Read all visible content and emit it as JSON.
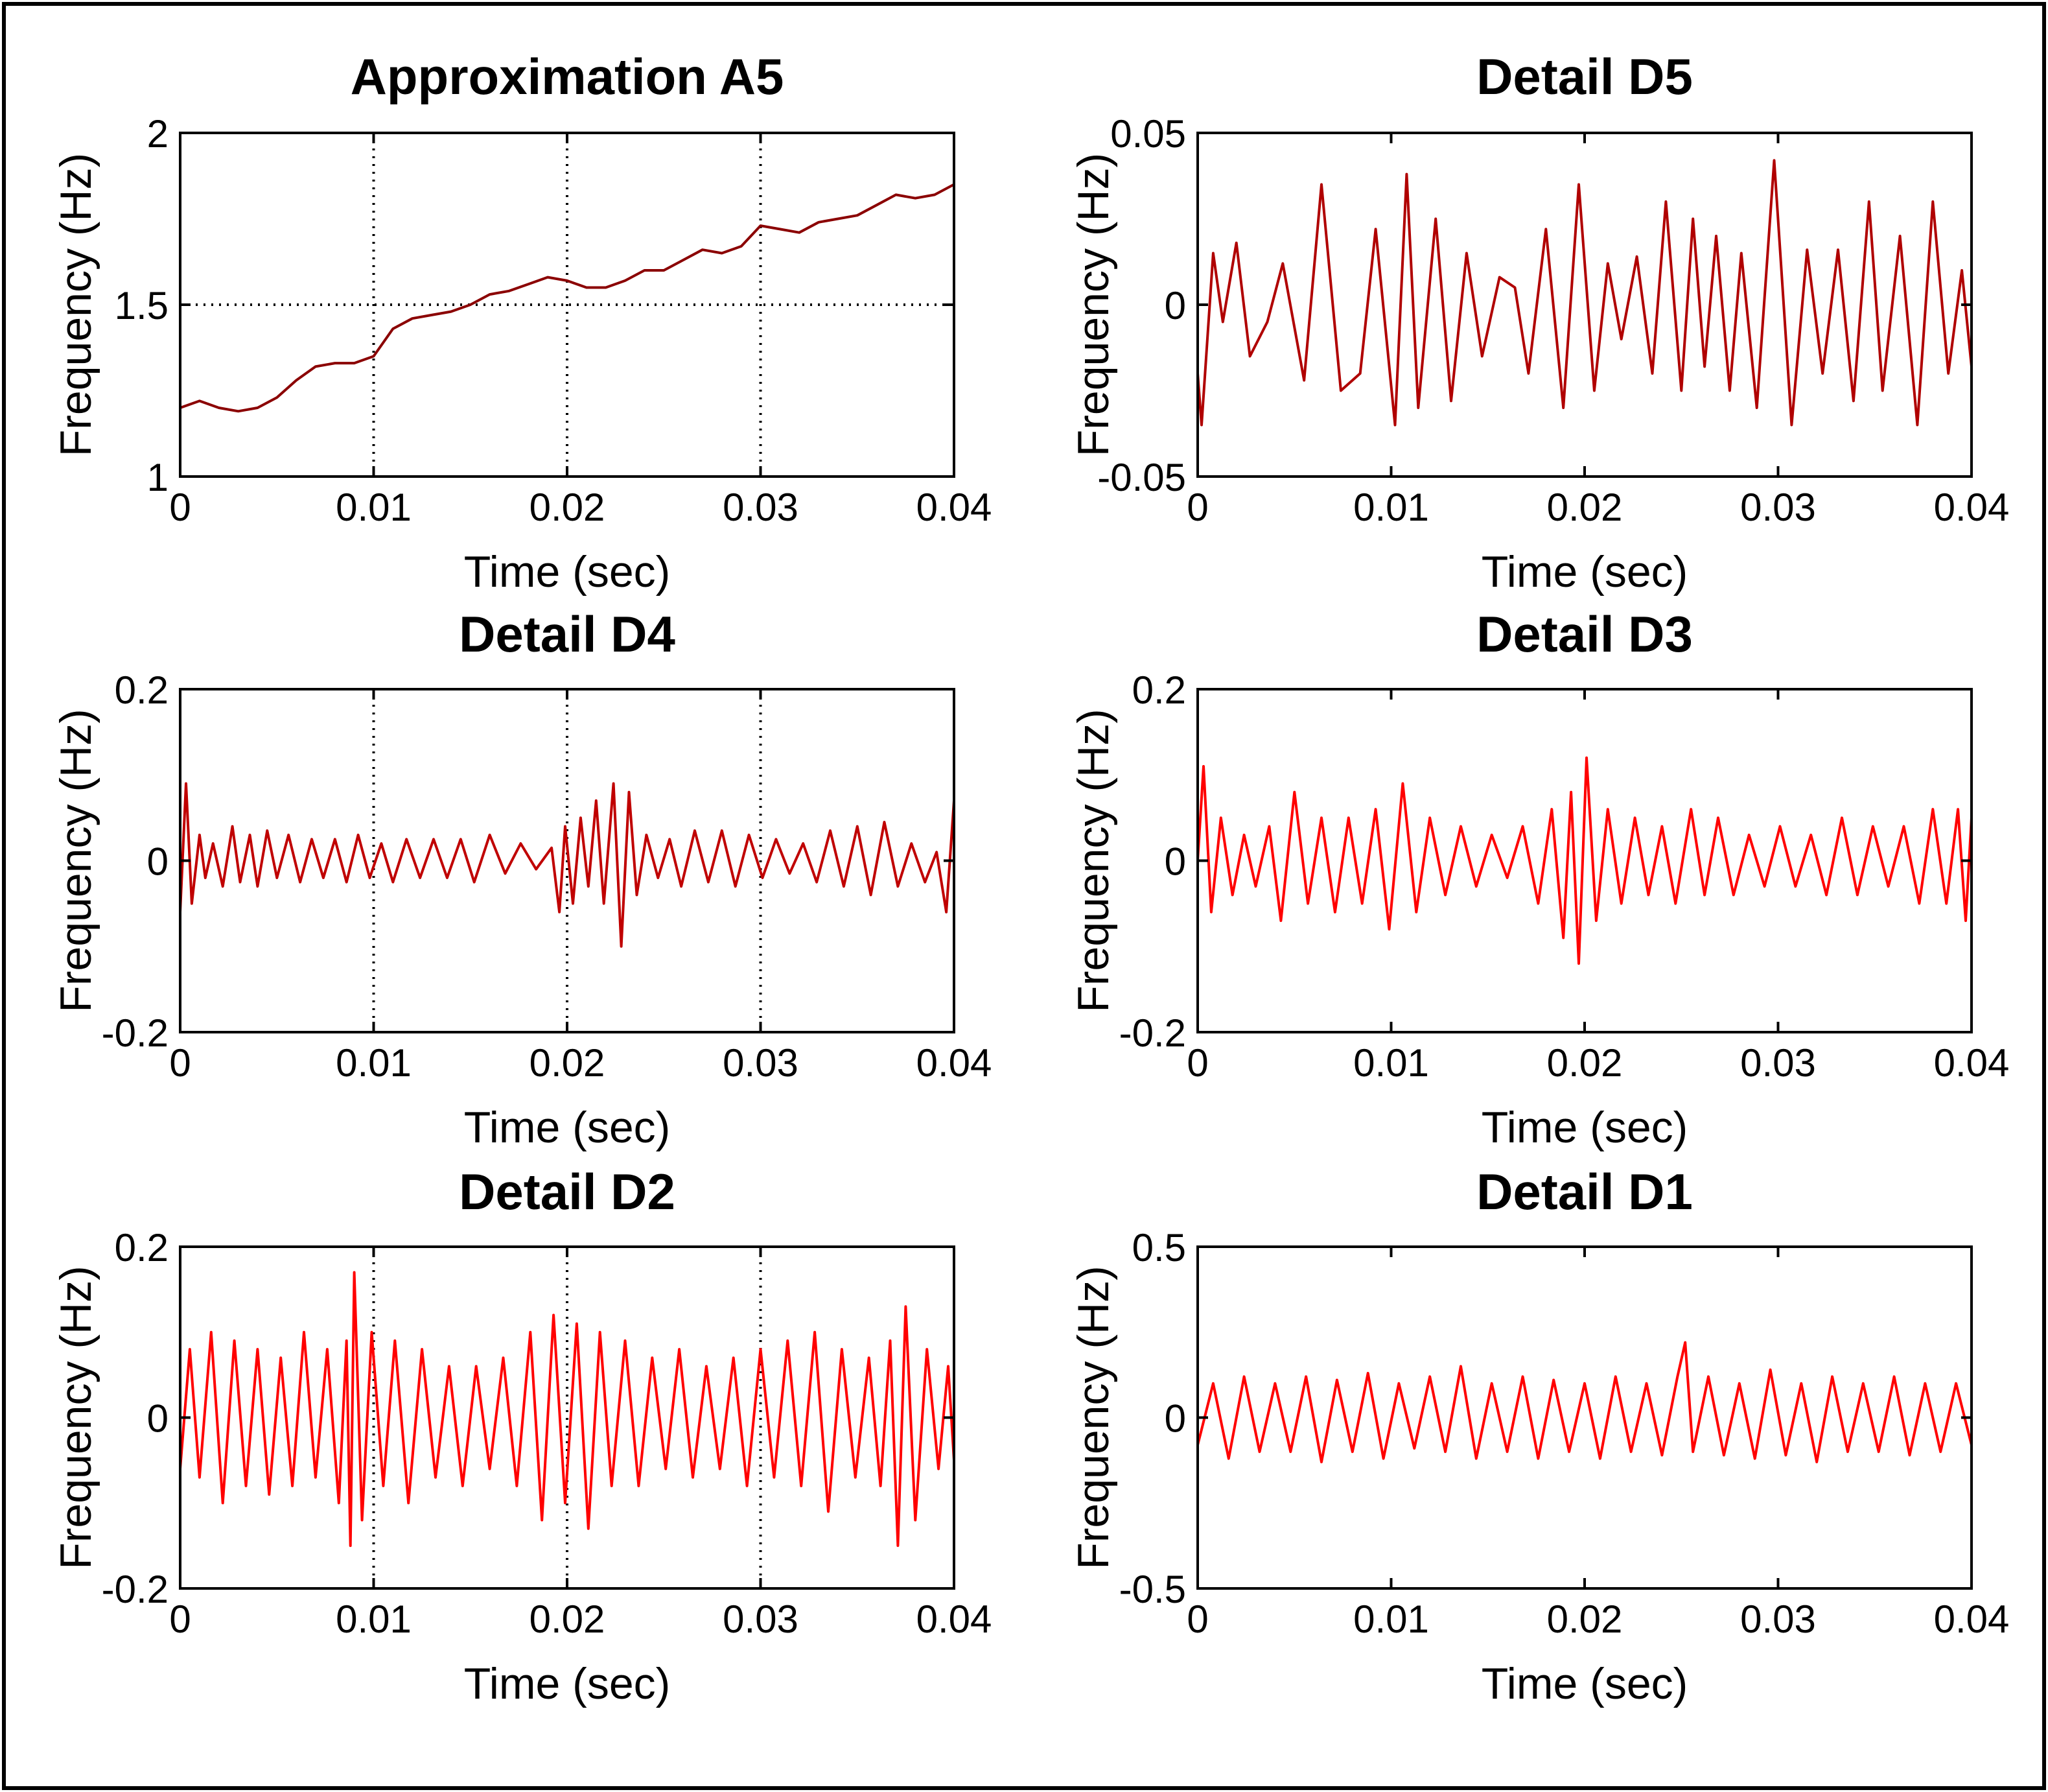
{
  "chart_data": [
    {
      "type": "line",
      "title": "Approximation A5",
      "xlabel": "Time (sec)",
      "ylabel": "Frequency (Hz)",
      "xlim": [
        0,
        0.04
      ],
      "ylim": [
        1,
        2
      ],
      "x_ticks": [
        "0",
        "0.01",
        "0.02",
        "0.03",
        "0.04"
      ],
      "y_ticks": [
        "1",
        "1.5",
        "2"
      ],
      "grid": "x-major dotted, y=1.5 dotted",
      "line_color": "#8b0000",
      "x": [
        0,
        0.001,
        0.002,
        0.003,
        0.004,
        0.005,
        0.006,
        0.007,
        0.008,
        0.009,
        0.01,
        0.011,
        0.012,
        0.013,
        0.014,
        0.015,
        0.016,
        0.017,
        0.018,
        0.019,
        0.02,
        0.021,
        0.022,
        0.023,
        0.024,
        0.025,
        0.026,
        0.027,
        0.028,
        0.029,
        0.03,
        0.031,
        0.032,
        0.033,
        0.034,
        0.035,
        0.036,
        0.037,
        0.038,
        0.039,
        0.04
      ],
      "y": [
        1.2,
        1.22,
        1.2,
        1.19,
        1.2,
        1.23,
        1.28,
        1.32,
        1.33,
        1.33,
        1.35,
        1.43,
        1.46,
        1.47,
        1.48,
        1.5,
        1.53,
        1.54,
        1.56,
        1.58,
        1.57,
        1.55,
        1.55,
        1.57,
        1.6,
        1.6,
        1.63,
        1.66,
        1.65,
        1.67,
        1.73,
        1.72,
        1.71,
        1.74,
        1.75,
        1.76,
        1.79,
        1.82,
        1.81,
        1.82,
        1.85
      ]
    },
    {
      "type": "line",
      "title": "Detail D5",
      "xlabel": "Time (sec)",
      "ylabel": "Frequency (Hz)",
      "xlim": [
        0,
        0.04
      ],
      "ylim": [
        -0.05,
        0.05
      ],
      "x_ticks": [
        "0",
        "0.01",
        "0.02",
        "0.03",
        "0.04"
      ],
      "y_ticks": [
        "-0.05",
        "0",
        "0.05"
      ],
      "line_color": "#b00000",
      "x": [
        0,
        0.0002,
        0.0008,
        0.0013,
        0.002,
        0.0027,
        0.0036,
        0.0044,
        0.0055,
        0.0064,
        0.0074,
        0.0084,
        0.0092,
        0.0102,
        0.0108,
        0.0114,
        0.0123,
        0.0131,
        0.0139,
        0.0147,
        0.0156,
        0.0164,
        0.0171,
        0.018,
        0.0189,
        0.0197,
        0.0205,
        0.0212,
        0.0219,
        0.0227,
        0.0235,
        0.0242,
        0.025,
        0.0256,
        0.0262,
        0.0268,
        0.0275,
        0.0281,
        0.0289,
        0.0298,
        0.0307,
        0.0315,
        0.0323,
        0.0331,
        0.0339,
        0.0347,
        0.0354,
        0.0363,
        0.0372,
        0.038,
        0.0388,
        0.0395,
        0.04
      ],
      "y": [
        -0.02,
        -0.035,
        0.015,
        -0.005,
        0.018,
        -0.015,
        -0.005,
        0.012,
        -0.022,
        0.035,
        -0.025,
        -0.02,
        0.022,
        -0.035,
        0.038,
        -0.03,
        0.025,
        -0.028,
        0.015,
        -0.015,
        0.008,
        0.005,
        -0.02,
        0.022,
        -0.03,
        0.035,
        -0.025,
        0.012,
        -0.01,
        0.014,
        -0.02,
        0.03,
        -0.025,
        0.025,
        -0.018,
        0.02,
        -0.025,
        0.015,
        -0.03,
        0.042,
        -0.035,
        0.016,
        -0.02,
        0.016,
        -0.028,
        0.03,
        -0.025,
        0.02,
        -0.035,
        0.03,
        -0.02,
        0.01,
        -0.018
      ]
    },
    {
      "type": "line",
      "title": "Detail D4",
      "xlabel": "Time (sec)",
      "ylabel": "Frequency (Hz)",
      "xlim": [
        0,
        0.04
      ],
      "ylim": [
        -0.2,
        0.2
      ],
      "x_ticks": [
        "0",
        "0.01",
        "0.02",
        "0.03",
        "0.04"
      ],
      "y_ticks": [
        "-0.2",
        "0",
        "0.2"
      ],
      "grid": "x-major dotted",
      "line_color": "#c00000",
      "x": [
        0,
        0.0003,
        0.0006,
        0.001,
        0.0013,
        0.0017,
        0.0022,
        0.0027,
        0.0031,
        0.0036,
        0.004,
        0.0045,
        0.005,
        0.0056,
        0.0062,
        0.0068,
        0.0074,
        0.008,
        0.0086,
        0.0092,
        0.0098,
        0.0104,
        0.011,
        0.0117,
        0.0124,
        0.0131,
        0.0138,
        0.0145,
        0.0152,
        0.016,
        0.0168,
        0.0176,
        0.0184,
        0.0192,
        0.0196,
        0.0199,
        0.0203,
        0.0207,
        0.0211,
        0.0215,
        0.0219,
        0.0224,
        0.0228,
        0.0232,
        0.0236,
        0.0241,
        0.0247,
        0.0253,
        0.0259,
        0.0266,
        0.0273,
        0.028,
        0.0287,
        0.0294,
        0.0301,
        0.0308,
        0.0315,
        0.0322,
        0.0329,
        0.0336,
        0.0343,
        0.035,
        0.0357,
        0.0364,
        0.0371,
        0.0378,
        0.0385,
        0.0391,
        0.0396,
        0.04
      ],
      "y": [
        -0.06,
        0.09,
        -0.05,
        0.03,
        -0.02,
        0.02,
        -0.03,
        0.04,
        -0.025,
        0.03,
        -0.03,
        0.035,
        -0.02,
        0.03,
        -0.025,
        0.025,
        -0.02,
        0.025,
        -0.025,
        0.03,
        -0.02,
        0.02,
        -0.025,
        0.025,
        -0.02,
        0.025,
        -0.02,
        0.025,
        -0.025,
        0.03,
        -0.015,
        0.02,
        -0.01,
        0.015,
        -0.06,
        0.04,
        -0.05,
        0.05,
        -0.03,
        0.07,
        -0.05,
        0.09,
        -0.1,
        0.08,
        -0.04,
        0.03,
        -0.02,
        0.025,
        -0.03,
        0.035,
        -0.025,
        0.035,
        -0.03,
        0.03,
        -0.02,
        0.025,
        -0.015,
        0.02,
        -0.025,
        0.035,
        -0.03,
        0.04,
        -0.04,
        0.045,
        -0.03,
        0.02,
        -0.025,
        0.01,
        -0.06,
        0.07
      ]
    },
    {
      "type": "line",
      "title": "Detail D3",
      "xlabel": "Time (sec)",
      "ylabel": "Frequency (Hz)",
      "xlim": [
        0,
        0.04
      ],
      "ylim": [
        -0.2,
        0.2
      ],
      "x_ticks": [
        "0",
        "0.01",
        "0.02",
        "0.03",
        "0.04"
      ],
      "y_ticks": [
        "-0.2",
        "0",
        "0.2"
      ],
      "line_color": "#ff0000",
      "x": [
        0,
        0.0003,
        0.0007,
        0.0012,
        0.0018,
        0.0024,
        0.003,
        0.0037,
        0.0043,
        0.005,
        0.0057,
        0.0064,
        0.0071,
        0.0078,
        0.0085,
        0.0092,
        0.0099,
        0.0106,
        0.0113,
        0.012,
        0.0128,
        0.0136,
        0.0144,
        0.0152,
        0.016,
        0.0168,
        0.0176,
        0.0183,
        0.0189,
        0.0193,
        0.0197,
        0.0201,
        0.0206,
        0.0212,
        0.0219,
        0.0226,
        0.0233,
        0.024,
        0.0247,
        0.0255,
        0.0262,
        0.0269,
        0.0277,
        0.0285,
        0.0293,
        0.0301,
        0.0309,
        0.0317,
        0.0325,
        0.0333,
        0.0341,
        0.0349,
        0.0357,
        0.0365,
        0.0373,
        0.038,
        0.0387,
        0.0393,
        0.0397,
        0.04
      ],
      "y": [
        0.0,
        0.11,
        -0.06,
        0.05,
        -0.04,
        0.03,
        -0.03,
        0.04,
        -0.07,
        0.08,
        -0.05,
        0.05,
        -0.06,
        0.05,
        -0.05,
        0.06,
        -0.08,
        0.09,
        -0.06,
        0.05,
        -0.04,
        0.04,
        -0.03,
        0.03,
        -0.02,
        0.04,
        -0.05,
        0.06,
        -0.09,
        0.08,
        -0.12,
        0.12,
        -0.07,
        0.06,
        -0.05,
        0.05,
        -0.04,
        0.04,
        -0.05,
        0.06,
        -0.04,
        0.05,
        -0.04,
        0.03,
        -0.03,
        0.04,
        -0.03,
        0.03,
        -0.04,
        0.05,
        -0.04,
        0.04,
        -0.03,
        0.04,
        -0.05,
        0.06,
        -0.05,
        0.06,
        -0.07,
        0.05
      ]
    },
    {
      "type": "line",
      "title": "Detail D2",
      "xlabel": "Time (sec)",
      "ylabel": "Frequency (Hz)",
      "xlim": [
        0,
        0.04
      ],
      "ylim": [
        -0.2,
        0.2
      ],
      "x_ticks": [
        "0",
        "0.01",
        "0.02",
        "0.03",
        "0.04"
      ],
      "y_ticks": [
        "-0.2",
        "0",
        "0.2"
      ],
      "grid": "x-major dotted",
      "line_color": "#ff0000",
      "x": [
        0,
        0.0005,
        0.001,
        0.0016,
        0.0022,
        0.0028,
        0.0034,
        0.004,
        0.0046,
        0.0052,
        0.0058,
        0.0064,
        0.007,
        0.0076,
        0.0082,
        0.0086,
        0.0088,
        0.009,
        0.0094,
        0.0099,
        0.0105,
        0.0111,
        0.0118,
        0.0125,
        0.0132,
        0.0139,
        0.0146,
        0.0153,
        0.016,
        0.0167,
        0.0174,
        0.0181,
        0.0187,
        0.0193,
        0.0199,
        0.0205,
        0.0211,
        0.0217,
        0.0223,
        0.023,
        0.0237,
        0.0244,
        0.0251,
        0.0258,
        0.0265,
        0.0272,
        0.0279,
        0.0286,
        0.0293,
        0.03,
        0.0307,
        0.0314,
        0.0321,
        0.0328,
        0.0335,
        0.0342,
        0.0349,
        0.0356,
        0.0362,
        0.0367,
        0.0371,
        0.0375,
        0.038,
        0.0386,
        0.0392,
        0.0397,
        0.04
      ],
      "y": [
        -0.06,
        0.08,
        -0.07,
        0.1,
        -0.1,
        0.09,
        -0.08,
        0.08,
        -0.09,
        0.07,
        -0.08,
        0.1,
        -0.07,
        0.08,
        -0.1,
        0.09,
        -0.15,
        0.17,
        -0.12,
        0.1,
        -0.08,
        0.09,
        -0.1,
        0.08,
        -0.07,
        0.06,
        -0.08,
        0.06,
        -0.06,
        0.07,
        -0.08,
        0.1,
        -0.12,
        0.12,
        -0.1,
        0.11,
        -0.13,
        0.1,
        -0.08,
        0.09,
        -0.08,
        0.07,
        -0.06,
        0.08,
        -0.07,
        0.06,
        -0.06,
        0.07,
        -0.08,
        0.08,
        -0.07,
        0.09,
        -0.08,
        0.1,
        -0.11,
        0.08,
        -0.07,
        0.07,
        -0.08,
        0.09,
        -0.15,
        0.13,
        -0.12,
        0.08,
        -0.06,
        0.06,
        -0.05
      ]
    },
    {
      "type": "line",
      "title": "Detail D1",
      "xlabel": "Time (sec)",
      "ylabel": "Frequency (Hz)",
      "xlim": [
        0,
        0.04
      ],
      "ylim": [
        -0.5,
        0.5
      ],
      "x_ticks": [
        "0",
        "0.01",
        "0.02",
        "0.03",
        "0.04"
      ],
      "y_ticks": [
        "-0.5",
        "0",
        "0.5"
      ],
      "line_color": "#ff0000",
      "x": [
        0,
        0.0008,
        0.0016,
        0.0024,
        0.0032,
        0.004,
        0.0048,
        0.0056,
        0.0064,
        0.0072,
        0.008,
        0.0088,
        0.0096,
        0.0104,
        0.0112,
        0.012,
        0.0128,
        0.0136,
        0.0144,
        0.0152,
        0.016,
        0.0168,
        0.0176,
        0.0184,
        0.0192,
        0.02,
        0.0208,
        0.0216,
        0.0224,
        0.0232,
        0.024,
        0.0248,
        0.0252,
        0.0256,
        0.0264,
        0.0272,
        0.028,
        0.0288,
        0.0296,
        0.0304,
        0.0312,
        0.032,
        0.0328,
        0.0336,
        0.0344,
        0.0352,
        0.036,
        0.0368,
        0.0376,
        0.0384,
        0.0392,
        0.04
      ],
      "y": [
        -0.08,
        0.1,
        -0.12,
        0.12,
        -0.1,
        0.1,
        -0.1,
        0.12,
        -0.13,
        0.11,
        -0.1,
        0.13,
        -0.12,
        0.1,
        -0.09,
        0.12,
        -0.1,
        0.15,
        -0.12,
        0.1,
        -0.1,
        0.12,
        -0.12,
        0.11,
        -0.1,
        0.1,
        -0.12,
        0.12,
        -0.1,
        0.1,
        -0.11,
        0.12,
        0.22,
        -0.1,
        0.12,
        -0.11,
        0.1,
        -0.12,
        0.14,
        -0.11,
        0.1,
        -0.13,
        0.12,
        -0.1,
        0.1,
        -0.1,
        0.12,
        -0.11,
        0.1,
        -0.1,
        0.1,
        -0.08
      ]
    }
  ]
}
